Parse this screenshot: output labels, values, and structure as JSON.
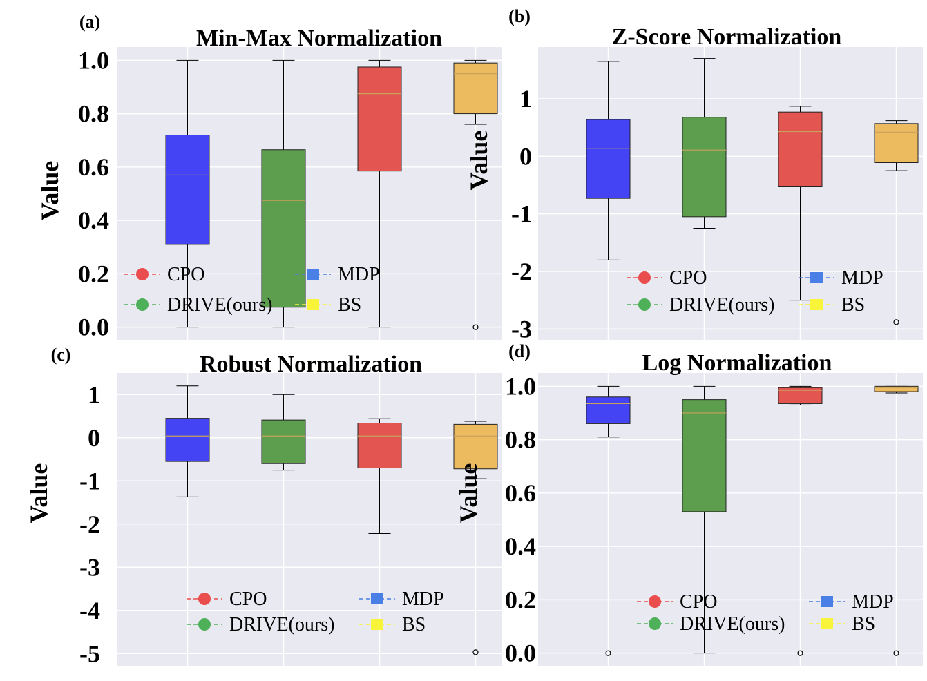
{
  "legend": [
    {
      "label": "CPO",
      "color": "#ea4d4d",
      "marker": "circle"
    },
    {
      "label": "MDP",
      "color": "#4a7fe6",
      "marker": "square"
    },
    {
      "label": "DRIVE(ours)",
      "color": "#4fb05a",
      "marker": "circle"
    },
    {
      "label": "BS",
      "color": "#f7f43a",
      "marker": "square"
    }
  ],
  "box_colors": [
    "#4444f4",
    "#5c9e4e",
    "#e25550",
    "#edbb5f"
  ],
  "chart_data": [
    {
      "panel": "(a)",
      "type": "box",
      "title": "Min-Max Normalization",
      "ylabel": "Value",
      "ylim": [
        -0.05,
        1.05
      ],
      "yticks": [
        0.0,
        0.2,
        0.4,
        0.6,
        0.8,
        1.0
      ],
      "ytick_labels": [
        "0.0",
        "0.2",
        "0.4",
        "0.6",
        "0.8",
        "1.0"
      ],
      "series": [
        {
          "name": "MDP",
          "whisker_low": 0.0,
          "q1": 0.31,
          "median": 0.57,
          "q3": 0.72,
          "whisker_high": 1.0,
          "outliers": []
        },
        {
          "name": "DRIVE(ours)",
          "whisker_low": 0.0,
          "q1": 0.075,
          "median": 0.475,
          "q3": 0.665,
          "whisker_high": 1.0,
          "outliers": []
        },
        {
          "name": "CPO",
          "whisker_low": 0.0,
          "q1": 0.585,
          "median": 0.875,
          "q3": 0.975,
          "whisker_high": 1.0,
          "outliers": []
        },
        {
          "name": "BS",
          "whisker_low": 0.76,
          "q1": 0.8,
          "median": 0.95,
          "q3": 0.99,
          "whisker_high": 1.0,
          "outliers": [
            0.0
          ]
        }
      ]
    },
    {
      "panel": "(b)",
      "type": "box",
      "title": "Z-Score Normalization",
      "ylabel": "Value",
      "ylim": [
        -3.2,
        1.9
      ],
      "yticks": [
        -3,
        -2,
        -1,
        0,
        1
      ],
      "ytick_labels": [
        "-3",
        "-2",
        "-1",
        "0",
        "1"
      ],
      "series": [
        {
          "name": "MDP",
          "whisker_low": -1.8,
          "q1": -0.73,
          "median": 0.14,
          "q3": 0.64,
          "whisker_high": 1.65,
          "outliers": []
        },
        {
          "name": "DRIVE(ours)",
          "whisker_low": -1.25,
          "q1": -1.05,
          "median": 0.11,
          "q3": 0.68,
          "whisker_high": 1.7,
          "outliers": []
        },
        {
          "name": "CPO",
          "whisker_low": -2.5,
          "q1": -0.53,
          "median": 0.43,
          "q3": 0.77,
          "whisker_high": 0.87,
          "outliers": []
        },
        {
          "name": "BS",
          "whisker_low": -0.25,
          "q1": -0.11,
          "median": 0.42,
          "q3": 0.57,
          "whisker_high": 0.62,
          "outliers": [
            -2.88
          ]
        }
      ]
    },
    {
      "panel": "(c)",
      "type": "box",
      "title": "Robust Normalization",
      "ylabel": "Value",
      "ylim": [
        -5.3,
        1.5
      ],
      "yticks": [
        -5,
        -4,
        -3,
        -2,
        -1,
        0,
        1
      ],
      "ytick_labels": [
        "-5",
        "-4",
        "-3",
        "-2",
        "-1",
        "0",
        "1"
      ],
      "series": [
        {
          "name": "MDP",
          "whisker_low": -1.37,
          "q1": -0.55,
          "median": 0.04,
          "q3": 0.45,
          "whisker_high": 1.2,
          "outliers": []
        },
        {
          "name": "DRIVE(ours)",
          "whisker_low": -0.75,
          "q1": -0.6,
          "median": 0.04,
          "q3": 0.41,
          "whisker_high": 1.0,
          "outliers": []
        },
        {
          "name": "CPO",
          "whisker_low": -2.22,
          "q1": -0.7,
          "median": 0.04,
          "q3": 0.34,
          "whisker_high": 0.44,
          "outliers": []
        },
        {
          "name": "BS",
          "whisker_low": -0.95,
          "q1": -0.72,
          "median": 0.04,
          "q3": 0.31,
          "whisker_high": 0.38,
          "outliers": [
            -4.97
          ]
        }
      ]
    },
    {
      "panel": "(d)",
      "type": "box",
      "title": "Log Normalization",
      "ylabel": "Value",
      "ylim": [
        -0.05,
        1.05
      ],
      "yticks": [
        0.0,
        0.2,
        0.4,
        0.6,
        0.8,
        1.0
      ],
      "ytick_labels": [
        "0.0",
        "0.2",
        "0.4",
        "0.6",
        "0.8",
        "1.0"
      ],
      "series": [
        {
          "name": "MDP",
          "whisker_low": 0.81,
          "q1": 0.86,
          "median": 0.935,
          "q3": 0.96,
          "whisker_high": 1.0,
          "outliers": [
            0.0
          ]
        },
        {
          "name": "DRIVE(ours)",
          "whisker_low": 0.0,
          "q1": 0.53,
          "median": 0.9,
          "q3": 0.95,
          "whisker_high": 1.0,
          "outliers": []
        },
        {
          "name": "CPO",
          "whisker_low": 0.93,
          "q1": 0.935,
          "median": 0.985,
          "q3": 0.995,
          "whisker_high": 1.0,
          "outliers": [
            0.0
          ]
        },
        {
          "name": "BS",
          "whisker_low": 0.975,
          "q1": 0.98,
          "median": 0.995,
          "q3": 1.0,
          "whisker_high": 1.0,
          "outliers": [
            0.0
          ]
        }
      ]
    }
  ]
}
